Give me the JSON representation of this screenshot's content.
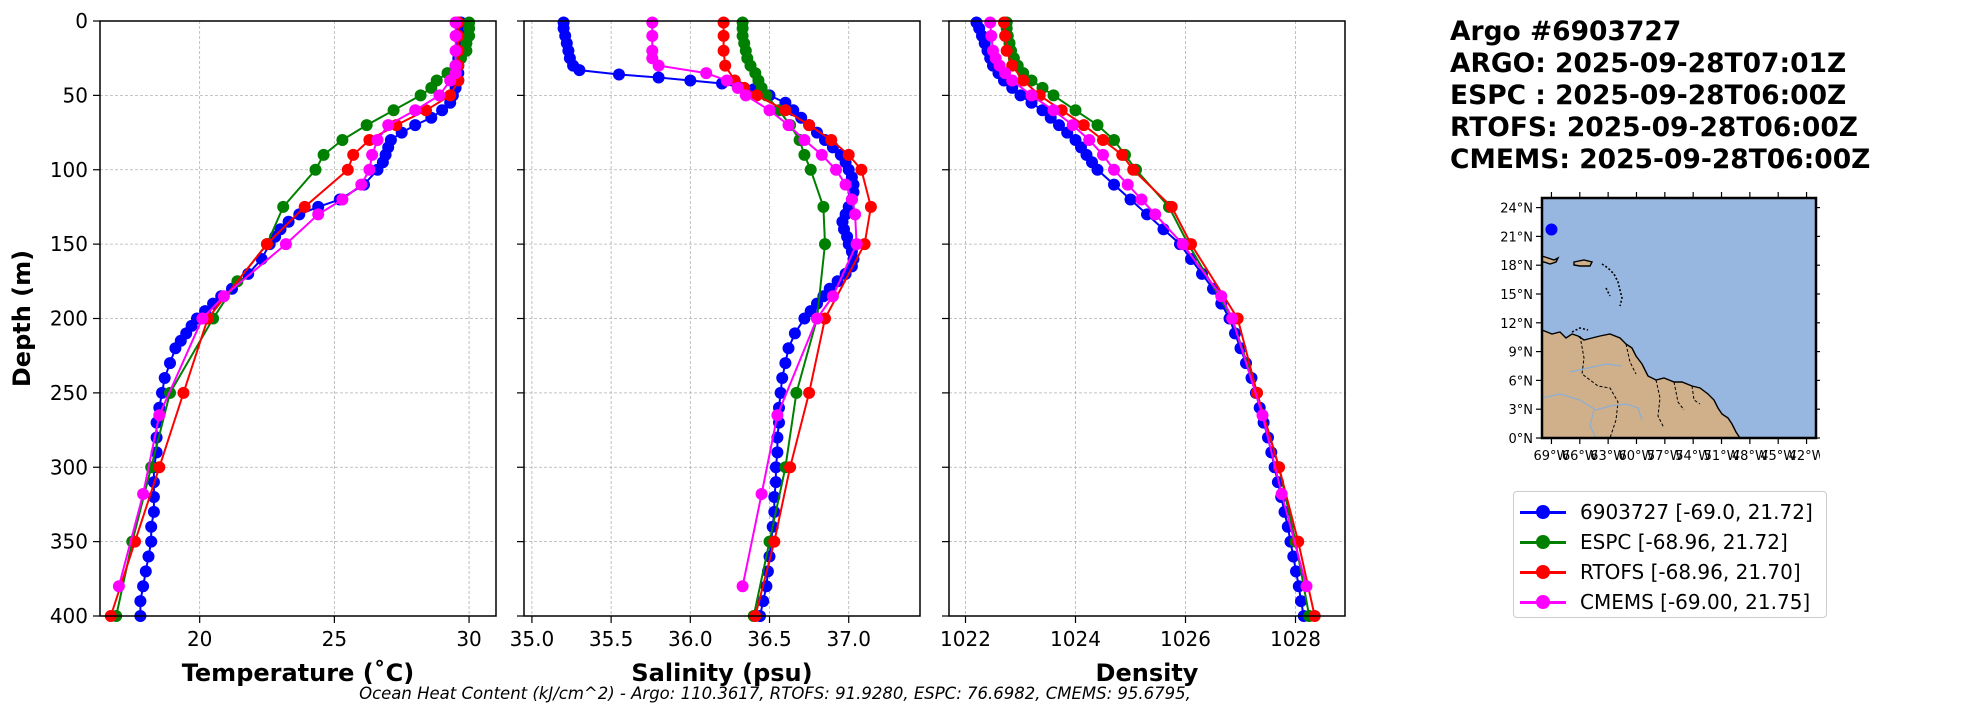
{
  "title": {
    "float_id": "Argo #6903727",
    "argo_time": "ARGO: 2025-09-28T07:01Z",
    "espc_time": "ESPC : 2025-09-28T06:00Z",
    "rtofs_time": "RTOFS: 2025-09-28T06:00Z",
    "cmems_time": "CMEMS: 2025-09-28T06:00Z"
  },
  "footer": {
    "ohc": "Ocean Heat Content (kJ/cm^2) - Argo: 110.3617,  RTOFS: 91.9280,  ESPC: 76.6982,  CMEMS: 95.6795,"
  },
  "colors": {
    "argo": "#0000ff",
    "espc": "#008000",
    "rtofs": "#ff0000",
    "cmems": "#ff00ff",
    "land": "#cfb08a",
    "ocean": "#97b6e0"
  },
  "legend": {
    "items": [
      {
        "key": "argo",
        "label": "6903727 [-69.0, 21.72]"
      },
      {
        "key": "espc",
        "label": "ESPC [-68.96, 21.72]"
      },
      {
        "key": "rtofs",
        "label": "RTOFS [-68.96, 21.70]"
      },
      {
        "key": "cmems",
        "label": "CMEMS [-69.00, 21.75]"
      }
    ]
  },
  "chart_data": [
    {
      "type": "line",
      "title": "",
      "xlabel": "Temperature (˚C)",
      "ylabel": "Depth (m)",
      "xlim": [
        16.3,
        31.0
      ],
      "ylim": [
        400,
        0
      ],
      "xticks": [
        20,
        25,
        30
      ],
      "yticks": [
        0,
        50,
        100,
        150,
        200,
        250,
        300,
        350,
        400
      ],
      "grid": true,
      "series": [
        {
          "name": "6903727",
          "key": "argo",
          "y": [
            1,
            5,
            10,
            15,
            20,
            25,
            30,
            35,
            40,
            45,
            50,
            55,
            60,
            65,
            70,
            75,
            80,
            85,
            90,
            95,
            100,
            110,
            120,
            125,
            130,
            135,
            140,
            145,
            150,
            160,
            170,
            180,
            185,
            190,
            195,
            200,
            205,
            210,
            215,
            220,
            230,
            240,
            250,
            260,
            270,
            280,
            290,
            300,
            310,
            320,
            330,
            340,
            350,
            360,
            370,
            380,
            390,
            400
          ],
          "x": [
            29.7,
            29.7,
            29.7,
            29.7,
            29.7,
            29.6,
            29.6,
            29.6,
            29.6,
            29.5,
            29.4,
            29.3,
            29.0,
            28.6,
            28.0,
            27.5,
            27.1,
            27.0,
            26.9,
            26.8,
            26.6,
            26.1,
            25.2,
            24.4,
            23.7,
            23.3,
            23.0,
            22.8,
            22.6,
            22.3,
            21.8,
            21.2,
            20.8,
            20.5,
            20.2,
            19.9,
            19.7,
            19.5,
            19.3,
            19.1,
            18.9,
            18.7,
            18.6,
            18.5,
            18.4,
            18.4,
            18.4,
            18.3,
            18.3,
            18.3,
            18.3,
            18.2,
            18.2,
            18.1,
            18.0,
            17.9,
            17.8,
            17.8
          ]
        },
        {
          "name": "ESPC",
          "key": "espc",
          "y": [
            1,
            5,
            10,
            15,
            20,
            25,
            30,
            35,
            40,
            45,
            50,
            60,
            70,
            80,
            90,
            100,
            125,
            150,
            175,
            200,
            250,
            300,
            350,
            400
          ],
          "x": [
            30.0,
            30.0,
            30.0,
            29.9,
            29.9,
            29.7,
            29.5,
            29.2,
            28.8,
            28.6,
            28.2,
            27.2,
            26.2,
            25.3,
            24.6,
            24.3,
            23.1,
            22.5,
            21.4,
            20.5,
            18.9,
            18.2,
            17.5,
            16.9
          ]
        },
        {
          "name": "RTOFS",
          "key": "rtofs",
          "y": [
            1,
            10,
            20,
            30,
            40,
            50,
            60,
            70,
            80,
            90,
            100,
            125,
            150,
            200,
            250,
            300,
            350,
            400
          ],
          "x": [
            29.6,
            29.6,
            29.6,
            29.6,
            29.6,
            29.3,
            28.4,
            27.3,
            26.3,
            25.7,
            25.5,
            23.9,
            22.5,
            20.3,
            19.4,
            18.5,
            17.6,
            16.7
          ]
        },
        {
          "name": "CMEMS",
          "key": "cmems",
          "y": [
            1,
            10,
            20,
            30,
            35,
            40,
            50,
            60,
            70,
            80,
            90,
            100,
            110,
            120,
            130,
            150,
            185,
            200,
            265,
            318,
            380
          ],
          "x": [
            29.5,
            29.5,
            29.5,
            29.5,
            29.5,
            29.3,
            28.9,
            28.0,
            27.0,
            26.6,
            26.4,
            26.3,
            26.0,
            25.3,
            24.4,
            23.2,
            20.9,
            20.1,
            18.5,
            17.9,
            17.0
          ]
        }
      ]
    },
    {
      "type": "line",
      "title": "",
      "xlabel": "Salinity (psu)",
      "ylabel": "",
      "xlim": [
        34.95,
        37.45
      ],
      "ylim": [
        400,
        0
      ],
      "xticks": [
        35.0,
        35.5,
        36.0,
        36.5,
        37.0
      ],
      "yticks": [
        0,
        50,
        100,
        150,
        200,
        250,
        300,
        350,
        400
      ],
      "grid": true,
      "series": [
        {
          "name": "6903727",
          "key": "argo",
          "y": [
            1,
            5,
            10,
            15,
            20,
            25,
            30,
            33,
            36,
            38,
            40,
            42,
            44,
            46,
            48,
            50,
            55,
            60,
            65,
            70,
            75,
            80,
            85,
            90,
            95,
            100,
            105,
            110,
            115,
            120,
            125,
            130,
            135,
            140,
            145,
            150,
            155,
            160,
            165,
            170,
            175,
            180,
            185,
            190,
            195,
            200,
            210,
            220,
            230,
            240,
            250,
            260,
            270,
            280,
            290,
            300,
            310,
            320,
            330,
            340,
            350,
            360,
            370,
            380,
            390,
            400
          ],
          "x": [
            35.2,
            35.2,
            35.21,
            35.22,
            35.23,
            35.24,
            35.26,
            35.3,
            35.55,
            35.8,
            36.0,
            36.2,
            36.3,
            36.4,
            36.45,
            36.5,
            36.6,
            36.65,
            36.7,
            36.75,
            36.8,
            36.85,
            36.9,
            36.95,
            36.98,
            37.0,
            37.02,
            37.03,
            37.03,
            37.02,
            37.0,
            36.98,
            36.96,
            36.97,
            36.99,
            37.0,
            37.02,
            37.03,
            37.02,
            36.98,
            36.93,
            36.88,
            36.84,
            36.8,
            36.76,
            36.72,
            36.66,
            36.62,
            36.6,
            36.58,
            36.57,
            36.56,
            36.56,
            36.55,
            36.55,
            36.54,
            36.54,
            36.53,
            36.53,
            36.52,
            36.51,
            36.5,
            36.49,
            36.48,
            36.46,
            36.44
          ]
        },
        {
          "name": "ESPC",
          "key": "espc",
          "y": [
            1,
            5,
            10,
            15,
            20,
            25,
            30,
            35,
            40,
            45,
            50,
            60,
            70,
            80,
            90,
            100,
            125,
            150,
            200,
            250,
            300,
            350,
            400
          ],
          "x": [
            36.33,
            36.33,
            36.33,
            36.34,
            36.35,
            36.36,
            36.38,
            36.41,
            36.43,
            36.45,
            36.48,
            36.56,
            36.63,
            36.69,
            36.72,
            36.76,
            36.84,
            36.85,
            36.8,
            36.67,
            36.6,
            36.5,
            36.4
          ]
        },
        {
          "name": "RTOFS",
          "key": "rtofs",
          "y": [
            1,
            10,
            20,
            30,
            40,
            45,
            50,
            60,
            70,
            80,
            90,
            100,
            125,
            150,
            200,
            250,
            300,
            350,
            400
          ],
          "x": [
            36.21,
            36.21,
            36.21,
            36.22,
            36.28,
            36.34,
            36.42,
            36.6,
            36.75,
            36.89,
            37.0,
            37.08,
            37.14,
            37.1,
            36.85,
            36.75,
            36.63,
            36.53,
            36.41
          ]
        },
        {
          "name": "CMEMS",
          "key": "cmems",
          "y": [
            1,
            10,
            20,
            25,
            30,
            35,
            40,
            45,
            50,
            60,
            70,
            80,
            90,
            100,
            110,
            120,
            130,
            150,
            185,
            200,
            265,
            318,
            380
          ],
          "x": [
            35.76,
            35.76,
            35.76,
            35.76,
            35.8,
            36.1,
            36.23,
            36.3,
            36.35,
            36.5,
            36.62,
            36.72,
            36.83,
            36.92,
            36.98,
            37.02,
            37.04,
            37.05,
            36.9,
            36.8,
            36.55,
            36.45,
            36.33
          ]
        }
      ]
    },
    {
      "type": "line",
      "title": "",
      "xlabel": "Density",
      "ylabel": "",
      "xlim": [
        1021.7,
        1028.9
      ],
      "ylim": [
        400,
        0
      ],
      "xticks": [
        1022,
        1024,
        1026,
        1028
      ],
      "yticks": [
        0,
        50,
        100,
        150,
        200,
        250,
        300,
        350,
        400
      ],
      "grid": true,
      "series": [
        {
          "name": "6903727",
          "key": "argo",
          "y": [
            1,
            5,
            10,
            15,
            20,
            25,
            30,
            35,
            40,
            45,
            50,
            55,
            60,
            65,
            70,
            75,
            80,
            85,
            90,
            95,
            100,
            110,
            120,
            130,
            140,
            150,
            160,
            170,
            180,
            190,
            200,
            210,
            220,
            230,
            240,
            250,
            260,
            270,
            280,
            290,
            300,
            310,
            320,
            330,
            340,
            350,
            360,
            370,
            380,
            390,
            400
          ],
          "x": [
            1022.2,
            1022.25,
            1022.3,
            1022.35,
            1022.4,
            1022.45,
            1022.5,
            1022.6,
            1022.7,
            1022.85,
            1023.0,
            1023.2,
            1023.4,
            1023.55,
            1023.7,
            1023.85,
            1024.0,
            1024.1,
            1024.2,
            1024.3,
            1024.4,
            1024.7,
            1025.0,
            1025.3,
            1025.6,
            1025.9,
            1026.1,
            1026.3,
            1026.5,
            1026.65,
            1026.8,
            1026.9,
            1027.0,
            1027.1,
            1027.2,
            1027.28,
            1027.35,
            1027.42,
            1027.5,
            1027.56,
            1027.62,
            1027.68,
            1027.74,
            1027.8,
            1027.86,
            1027.91,
            1027.96,
            1028.01,
            1028.06,
            1028.1,
            1028.15
          ]
        },
        {
          "name": "ESPC",
          "key": "espc",
          "y": [
            1,
            5,
            10,
            15,
            20,
            25,
            30,
            35,
            40,
            45,
            50,
            60,
            70,
            80,
            90,
            100,
            125,
            150,
            200,
            250,
            300,
            350,
            400
          ],
          "x": [
            1022.75,
            1022.75,
            1022.77,
            1022.8,
            1022.83,
            1022.88,
            1022.95,
            1023.05,
            1023.2,
            1023.4,
            1023.6,
            1024.0,
            1024.4,
            1024.7,
            1024.9,
            1025.1,
            1025.7,
            1026.05,
            1026.85,
            1027.3,
            1027.7,
            1028.0,
            1028.25
          ]
        },
        {
          "name": "RTOFS",
          "key": "rtofs",
          "y": [
            1,
            10,
            20,
            30,
            40,
            50,
            60,
            70,
            80,
            90,
            100,
            125,
            150,
            200,
            250,
            300,
            350,
            400
          ],
          "x": [
            1022.7,
            1022.72,
            1022.75,
            1022.85,
            1023.05,
            1023.35,
            1023.75,
            1024.15,
            1024.5,
            1024.85,
            1025.05,
            1025.75,
            1026.1,
            1026.95,
            1027.3,
            1027.7,
            1028.05,
            1028.35
          ]
        },
        {
          "name": "CMEMS",
          "key": "cmems",
          "y": [
            1,
            10,
            20,
            25,
            30,
            35,
            40,
            50,
            60,
            70,
            80,
            90,
            100,
            110,
            120,
            130,
            150,
            185,
            200,
            265,
            318,
            380
          ],
          "x": [
            1022.45,
            1022.47,
            1022.5,
            1022.55,
            1022.62,
            1022.72,
            1022.85,
            1023.2,
            1023.6,
            1023.95,
            1024.25,
            1024.5,
            1024.7,
            1024.95,
            1025.2,
            1025.45,
            1025.95,
            1026.65,
            1026.85,
            1027.4,
            1027.75,
            1028.2
          ]
        }
      ]
    }
  ],
  "map": {
    "lat_labels": [
      "24°N",
      "21°N",
      "18°N",
      "15°N",
      "12°N",
      "9°N",
      "6°N",
      "3°N",
      "0°N"
    ],
    "lon_labels": [
      "69°W",
      "66°W",
      "63°W",
      "60°W",
      "57°W",
      "54°W",
      "51°W",
      "48°W",
      "45°W",
      "42°W"
    ],
    "lat_range": [
      0,
      25
    ],
    "lon_range": [
      -70,
      -41
    ],
    "float_position": {
      "lon": -69.0,
      "lat": 21.72
    }
  }
}
